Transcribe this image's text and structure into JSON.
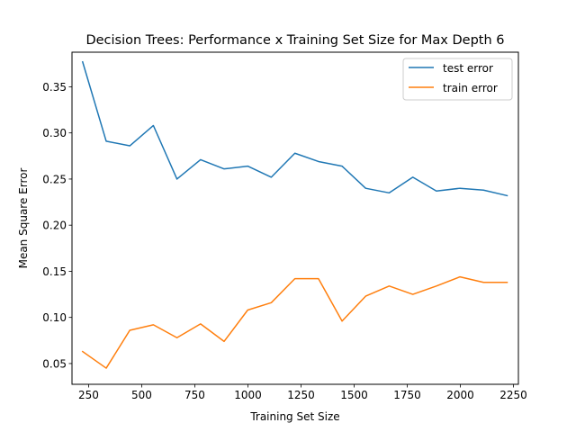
{
  "chart_data": {
    "type": "line",
    "title": "Decision Trees: Performance x Training Set Size for Max Depth 6",
    "xlabel": "Training Set Size",
    "ylabel": "Mean Square Error",
    "xlim": [
      172,
      2273
    ],
    "ylim": [
      0.0275,
      0.3875
    ],
    "xticks": [
      250,
      500,
      750,
      1000,
      1250,
      1500,
      1750,
      2000,
      2250
    ],
    "xtick_labels": [
      "250",
      "500",
      "750",
      "1000",
      "1250",
      "1500",
      "1750",
      "2000",
      "2250"
    ],
    "yticks": [
      0.05,
      0.1,
      0.15,
      0.2,
      0.25,
      0.3,
      0.35
    ],
    "ytick_labels": [
      "0.05",
      "0.10",
      "0.15",
      "0.20",
      "0.25",
      "0.30",
      "0.35"
    ],
    "grid": false,
    "legend_position": "top-right",
    "x": [
      222,
      333,
      444,
      555,
      666,
      777,
      888,
      999,
      1110,
      1221,
      1332,
      1443,
      1554,
      1665,
      1776,
      1887,
      1998,
      2109,
      2220
    ],
    "series": [
      {
        "name": "test error",
        "color": "#1f77b4",
        "values": [
          0.377,
          0.291,
          0.286,
          0.308,
          0.25,
          0.271,
          0.261,
          0.264,
          0.252,
          0.278,
          0.269,
          0.264,
          0.24,
          0.235,
          0.252,
          0.237,
          0.24,
          0.238,
          0.232
        ]
      },
      {
        "name": "train error",
        "color": "#ff7f0e",
        "values": [
          0.063,
          0.045,
          0.086,
          0.092,
          0.078,
          0.093,
          0.074,
          0.108,
          0.116,
          0.142,
          0.142,
          0.096,
          0.123,
          0.134,
          0.125,
          0.134,
          0.144,
          0.138,
          0.138
        ]
      }
    ]
  }
}
